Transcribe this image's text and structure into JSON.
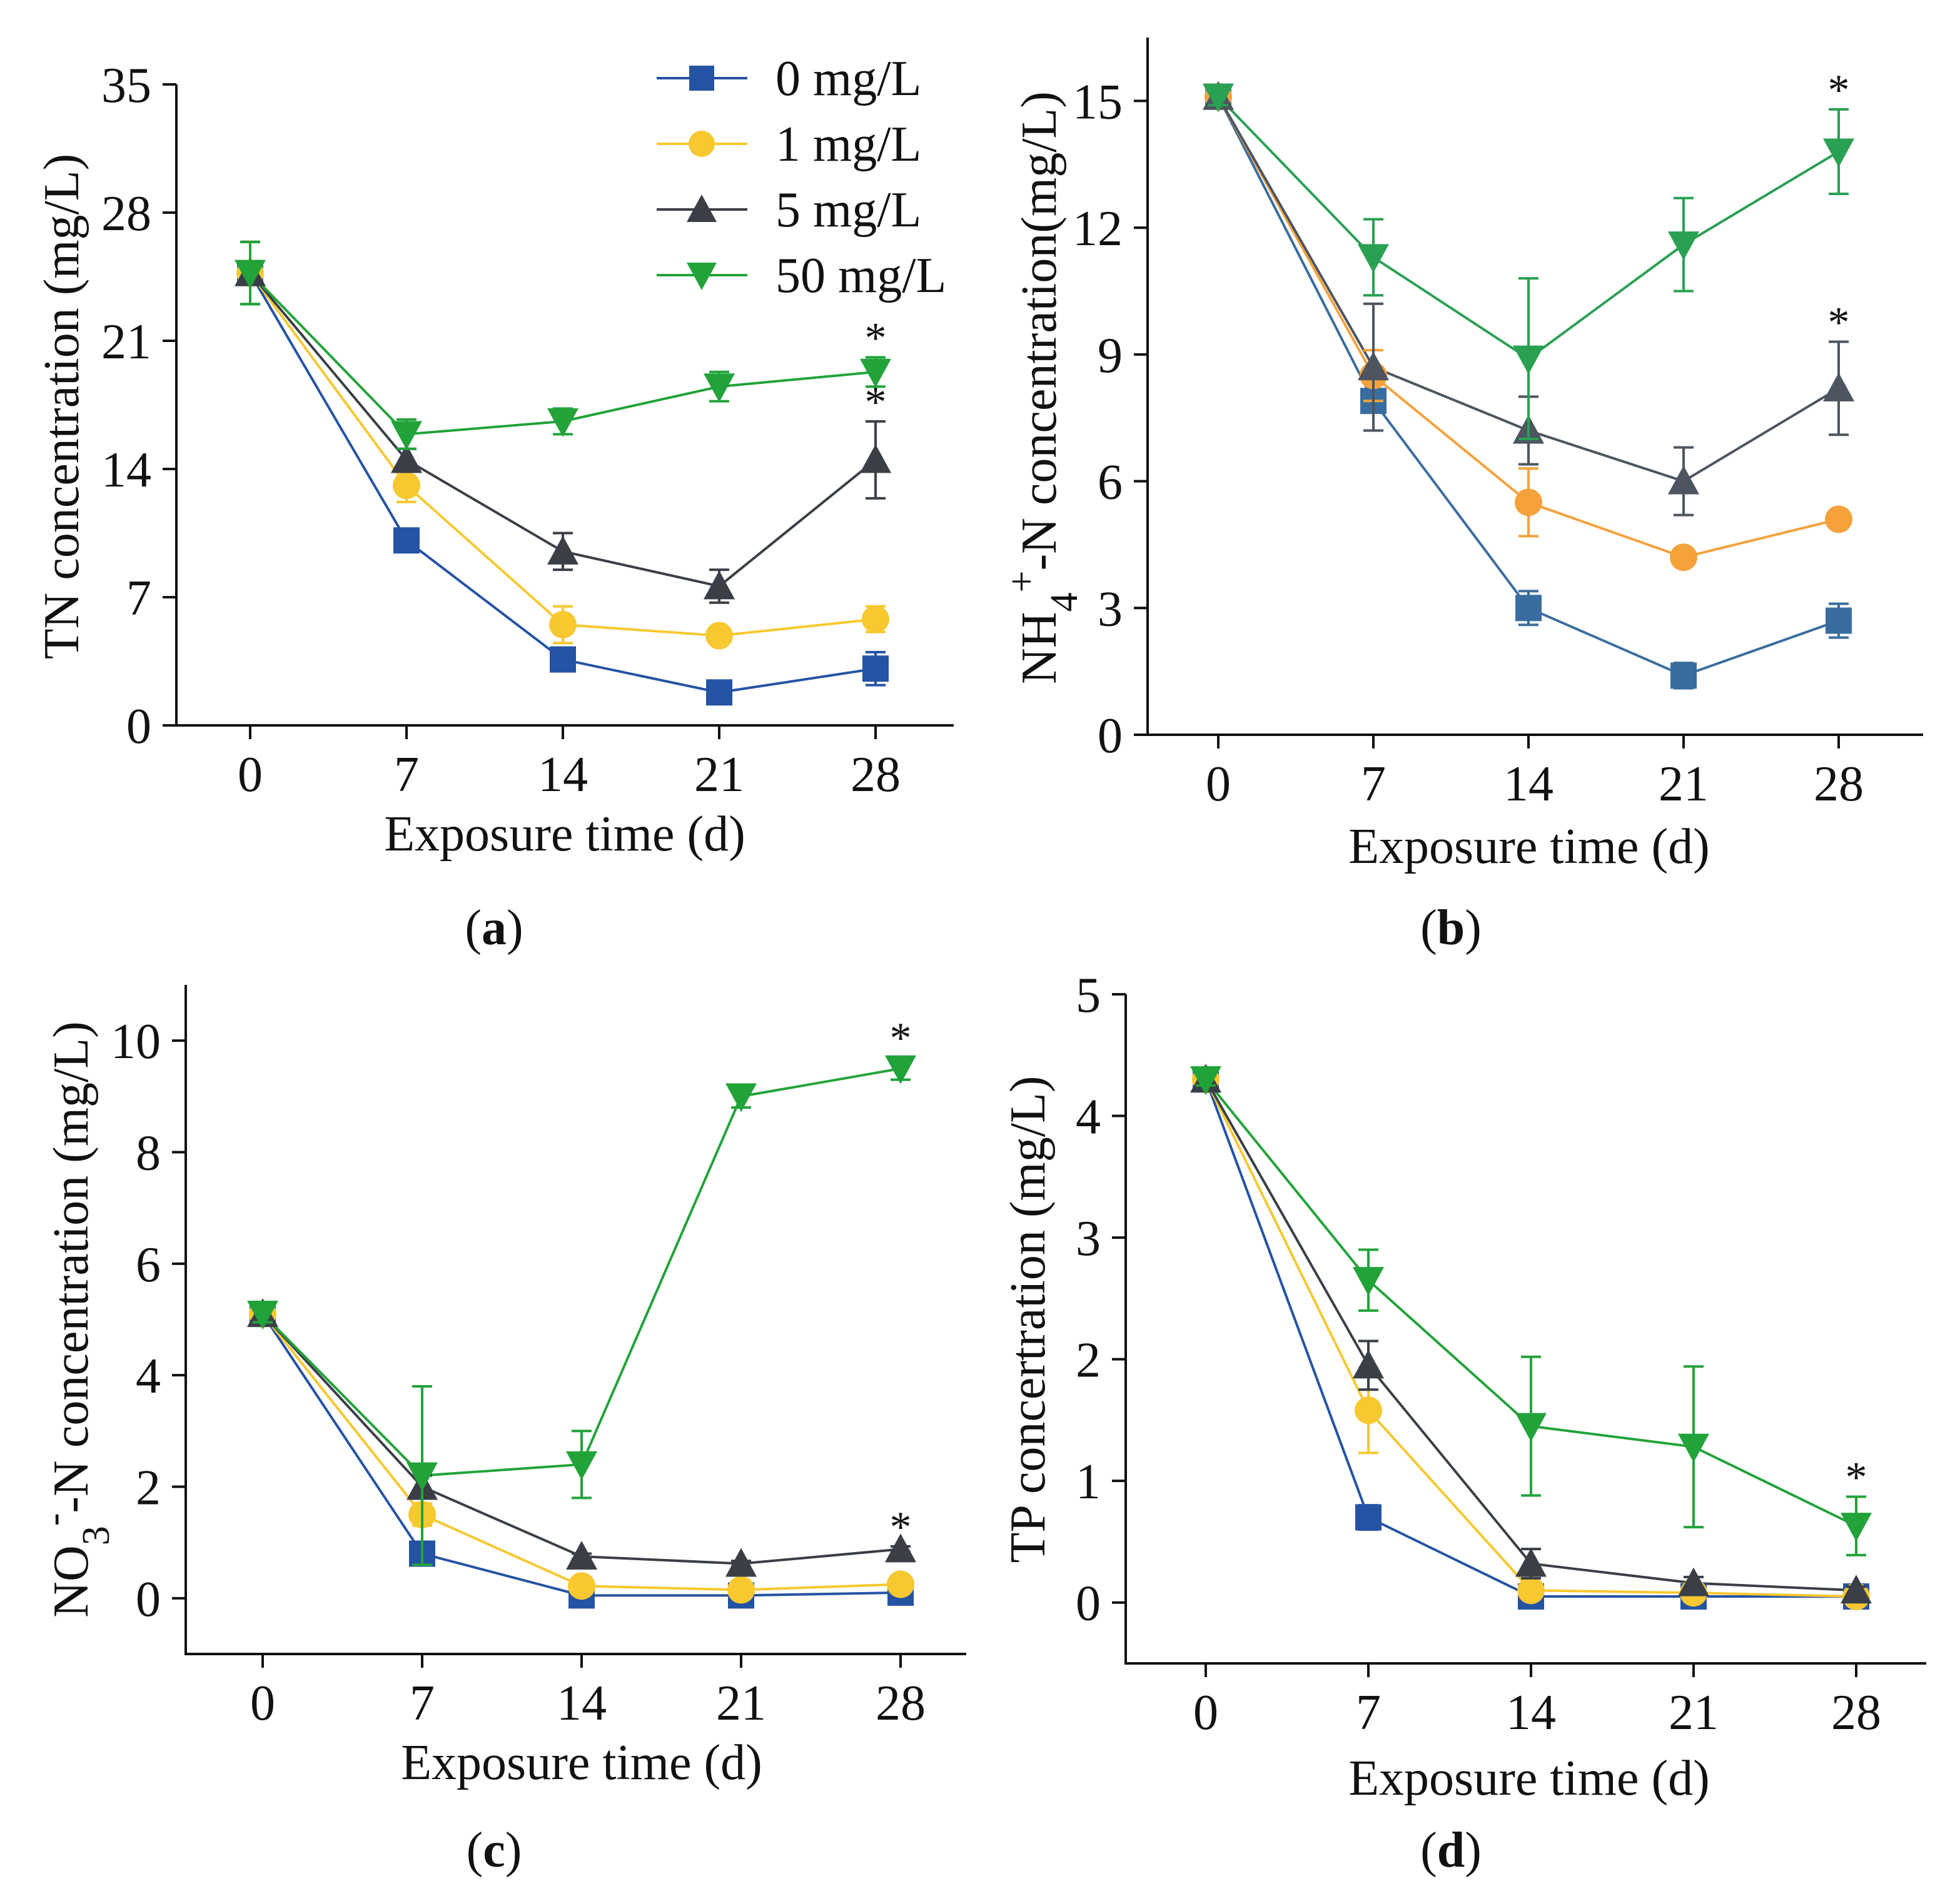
{
  "legend": [
    {
      "label": "0 mg/L",
      "color": "#2453a4",
      "marker": "square"
    },
    {
      "label": "1 mg/L",
      "color": "#f7c830",
      "marker": "circle"
    },
    {
      "label": "5 mg/L",
      "color": "#3a3f47",
      "marker": "triangle-up"
    },
    {
      "label": "50 mg/L",
      "color": "#22a33a",
      "marker": "triangle-down"
    }
  ],
  "chart_data": [
    {
      "id": "a",
      "type": "line",
      "panel_label": "a",
      "title": "",
      "xlabel": "Exposure time (d)",
      "ylabel": "TN concentration (mg/L)",
      "x": [
        0,
        7,
        14,
        21,
        28
      ],
      "xticks": [
        "0",
        "7",
        "14",
        "21",
        "28"
      ],
      "ylim": [
        0,
        35
      ],
      "yticks": [
        0,
        7,
        14,
        21,
        28,
        35
      ],
      "series": [
        {
          "name": "0 mg/L",
          "color": "#2453a4",
          "marker": "square",
          "values": [
            24.7,
            10.1,
            3.6,
            1.8,
            3.1
          ],
          "errors": [
            1.7,
            0.6,
            0.5,
            0.4,
            0.9
          ]
        },
        {
          "name": "1 mg/L",
          "color": "#f7c830",
          "marker": "circle",
          "values": [
            24.7,
            13.1,
            5.5,
            4.9,
            5.8
          ],
          "errors": [
            1.7,
            0.9,
            1.0,
            0.3,
            0.7
          ]
        },
        {
          "name": "5 mg/L",
          "color": "#3a3f47",
          "marker": "triangle-up",
          "values": [
            24.7,
            14.5,
            9.5,
            7.6,
            14.5
          ],
          "errors": [
            1.7,
            0.6,
            1.0,
            0.9,
            2.1
          ]
        },
        {
          "name": "50 mg/L",
          "color": "#22a33a",
          "marker": "triangle-down",
          "values": [
            24.7,
            15.9,
            16.6,
            18.5,
            19.3
          ],
          "errors": [
            1.7,
            0.8,
            0.7,
            0.8,
            0.8
          ]
        }
      ],
      "annotations": [
        {
          "text": "*",
          "series": "50 mg/L",
          "x": 28
        },
        {
          "text": "*",
          "series": "5 mg/L",
          "x": 28
        }
      ]
    },
    {
      "id": "b",
      "type": "line",
      "panel_label": "b",
      "title": "",
      "xlabel": "Exposure time (d)",
      "ylabel": "NH4+-N concentration(mg/L)",
      "ylabel_parts": {
        "pre": "NH",
        "sub": "4",
        "sup": "+",
        "post": "-N concentration(mg/L)"
      },
      "x": [
        0,
        7,
        14,
        21,
        28
      ],
      "xticks": [
        "0",
        "7",
        "14",
        "21",
        "28"
      ],
      "ylim": [
        0,
        16.5
      ],
      "yticks": [
        0,
        3,
        6,
        9,
        12,
        15
      ],
      "series": [
        {
          "name": "0 mg/L",
          "color": "#3a6d9f",
          "marker": "square",
          "values": [
            15.1,
            7.9,
            3.0,
            1.4,
            2.7
          ],
          "errors": [
            0.2,
            0.7,
            0.4,
            0.3,
            0.4
          ]
        },
        {
          "name": "1 mg/L",
          "color": "#f5a23c",
          "marker": "circle",
          "values": [
            15.1,
            8.5,
            5.5,
            4.2,
            5.1
          ],
          "errors": [
            0.2,
            0.6,
            0.8,
            0.2,
            0.2
          ]
        },
        {
          "name": "5 mg/L",
          "color": "#4c5560",
          "marker": "triangle-up",
          "values": [
            15.1,
            8.7,
            7.2,
            6.0,
            8.2
          ],
          "errors": [
            0.2,
            1.5,
            0.8,
            0.8,
            1.1
          ]
        },
        {
          "name": "50 mg/L",
          "color": "#2aa052",
          "marker": "triangle-down",
          "values": [
            15.1,
            11.3,
            8.9,
            11.6,
            13.8
          ],
          "errors": [
            0.2,
            0.9,
            1.9,
            1.1,
            1.0
          ]
        }
      ],
      "annotations": [
        {
          "text": "*",
          "series": "50 mg/L",
          "x": 28
        },
        {
          "text": "*",
          "series": "5 mg/L",
          "x": 28
        }
      ]
    },
    {
      "id": "c",
      "type": "line",
      "panel_label": "c",
      "title": "",
      "xlabel": "Exposure time (d)",
      "ylabel": "NO3--N concentration (mg/L)",
      "ylabel_parts": {
        "pre": "NO",
        "sub": "3",
        "sup": "-",
        "post": "-N concentration (mg/L)"
      },
      "x": [
        0,
        7,
        14,
        21,
        28
      ],
      "xticks": [
        "0",
        "7",
        "14",
        "21",
        "28"
      ],
      "ylim": [
        -1,
        11
      ],
      "yticks": [
        0,
        2,
        4,
        6,
        8,
        10
      ],
      "series": [
        {
          "name": "0 mg/L",
          "color": "#2453a4",
          "marker": "square",
          "values": [
            5.1,
            0.8,
            0.05,
            0.05,
            0.1
          ],
          "errors": [
            0.15,
            0.15,
            0.05,
            0.05,
            0.05
          ]
        },
        {
          "name": "1 mg/L",
          "color": "#f7c830",
          "marker": "circle",
          "values": [
            5.1,
            1.5,
            0.22,
            0.15,
            0.25
          ],
          "errors": [
            0.15,
            0.2,
            0.05,
            0.05,
            0.05
          ]
        },
        {
          "name": "5 mg/L",
          "color": "#3a3f47",
          "marker": "triangle-up",
          "values": [
            5.1,
            2.0,
            0.75,
            0.62,
            0.88
          ],
          "errors": [
            0.15,
            0.2,
            0.05,
            0.05,
            0.05
          ]
        },
        {
          "name": "50 mg/L",
          "color": "#22a33a",
          "marker": "triangle-down",
          "values": [
            5.1,
            2.2,
            2.4,
            9.0,
            9.5
          ],
          "errors": [
            0.15,
            1.6,
            0.6,
            0.2,
            0.2
          ]
        }
      ],
      "annotations": [
        {
          "text": "*",
          "series": "50 mg/L",
          "x": 28
        },
        {
          "text": "*",
          "series": "5 mg/L",
          "x": 28
        }
      ]
    },
    {
      "id": "d",
      "type": "line",
      "panel_label": "d",
      "title": "",
      "xlabel": "Exposure time (d)",
      "ylabel": "TP concertration (mg/L)",
      "x": [
        0,
        7,
        14,
        21,
        28
      ],
      "xticks": [
        "0",
        "7",
        "14",
        "21",
        "28"
      ],
      "ylim": [
        -0.5,
        5
      ],
      "yticks": [
        0,
        1,
        2,
        3,
        4,
        5
      ],
      "series": [
        {
          "name": "0 mg/L",
          "color": "#2453a4",
          "marker": "square",
          "values": [
            4.3,
            0.7,
            0.05,
            0.05,
            0.05
          ],
          "errors": [
            0.05,
            0.1,
            0.03,
            0.03,
            0.03
          ]
        },
        {
          "name": "1 mg/L",
          "color": "#f7c830",
          "marker": "circle",
          "values": [
            4.3,
            1.58,
            0.1,
            0.08,
            0.05
          ],
          "errors": [
            0.05,
            0.35,
            0.05,
            0.05,
            0.03
          ]
        },
        {
          "name": "5 mg/L",
          "color": "#3a3f47",
          "marker": "triangle-up",
          "values": [
            4.3,
            1.95,
            0.32,
            0.16,
            0.1
          ],
          "errors": [
            0.05,
            0.2,
            0.12,
            0.05,
            0.03
          ]
        },
        {
          "name": "50 mg/L",
          "color": "#22a33a",
          "marker": "triangle-down",
          "values": [
            4.3,
            2.65,
            1.45,
            1.28,
            0.63
          ],
          "errors": [
            0.05,
            0.25,
            0.57,
            0.66,
            0.24
          ]
        }
      ],
      "annotations": [
        {
          "text": "*",
          "series": "50 mg/L",
          "x": 28
        }
      ]
    }
  ]
}
